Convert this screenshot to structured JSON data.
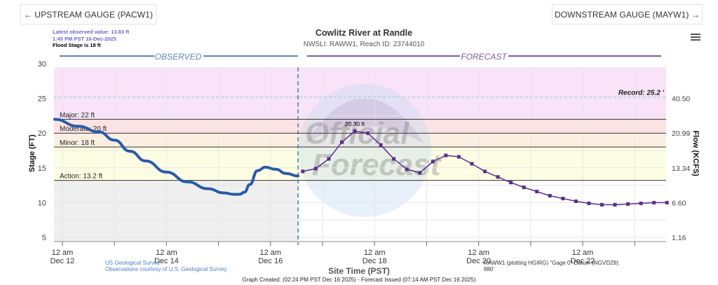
{
  "nav": {
    "upstream_label": "← UPSTREAM GAUGE (PACW1)",
    "downstream_label": "DOWNSTREAM GAUGE (MAYW1) →",
    "menu_icon": "hamburger-menu-icon"
  },
  "info": {
    "latest_value": "Latest observed value: 13.83 ft",
    "latest_time": "1:45 PM PST 16-Dec-2025",
    "flood_stage": "Flood Stage is 18 ft"
  },
  "header": {
    "title": "Cowlitz River at Randle",
    "subtitle": "NWSLI: RAWW1, Reach ID: 23744010"
  },
  "footer": {
    "usgs_line1": "US Geological Survey",
    "usgs_line2": "Observations courtesy of U.S. Geological Survey",
    "datum_line1": "RAWW1 (plotting HGIRG) \"Gage 0\" Datum (NGVD29):",
    "datum_line2": "880'",
    "xaxis_title": "Site Time (PST)",
    "created": "Graph Created: (02:24 PM PST Dec 16 2025) - Forecast Issued (07:14 AM PST Dec 16 2025)"
  },
  "chart_data": {
    "type": "line",
    "title": "Cowlitz River at Randle",
    "subtitle": "NWSLI: RAWW1, Reach ID: 23744010",
    "xlabel": "Site Time (PST)",
    "ylabel": "Stage (FT)",
    "ylabel_right": "Flow (KCFS)",
    "ylim": [
      4.5,
      29.5
    ],
    "y_ticks": [
      5,
      10,
      15,
      20,
      25,
      30
    ],
    "x_ticks": [
      {
        "line1": "12 am",
        "line2": "Dec 12"
      },
      {
        "line1": "12 am",
        "line2": "Dec 14"
      },
      {
        "line1": "12 am",
        "line2": "Dec 16"
      },
      {
        "line1": "12 am",
        "line2": "Dec 18"
      },
      {
        "line1": "12 am",
        "line2": "Dec 20"
      },
      {
        "line1": "12 am",
        "line2": "Dec 22"
      }
    ],
    "right_ticks": [
      {
        "stage": 25,
        "label": "40.50"
      },
      {
        "stage": 20,
        "label": "20.99"
      },
      {
        "stage": 15,
        "label": "13.34"
      },
      {
        "stage": 10,
        "label": "6.60"
      },
      {
        "stage": 5,
        "label": "1.16"
      }
    ],
    "section_labels": {
      "observed": "OBSERVED",
      "forecast": "FORECAST"
    },
    "thresholds": [
      {
        "name": "Major",
        "label": "Major: 22 ft",
        "value": 22,
        "band_color": "#f8e3f8"
      },
      {
        "name": "Moderate",
        "label": "Moderate: 20 ft",
        "value": 20,
        "band_color": "#fbe3e3"
      },
      {
        "name": "Minor",
        "label": "Minor: 18 ft",
        "value": 18,
        "band_color": "#fcefe2"
      },
      {
        "name": "Action",
        "label": "Action: 13.2 ft",
        "value": 13.2,
        "band_color": "#fdfde3"
      }
    ],
    "record": {
      "label": "Record: 25.2 '",
      "value": 25.2
    },
    "peak_label": "20.30 ft",
    "now_day": 4.53,
    "series": [
      {
        "name": "Observed",
        "color": "#2a5aa8",
        "x_days_from_dec12": [
          -0.15,
          0.3,
          0.7,
          1.0,
          1.3,
          1.6,
          2.0,
          2.4,
          2.8,
          3.1,
          3.3,
          3.4,
          3.5,
          3.6,
          3.75,
          3.9,
          4.1,
          4.3,
          4.53
        ],
        "stage_ft": [
          22.0,
          21.0,
          20.2,
          19.0,
          17.4,
          16.0,
          14.4,
          13.0,
          12.0,
          11.4,
          11.2,
          11.2,
          11.5,
          12.6,
          14.6,
          15.1,
          14.8,
          14.2,
          13.83
        ]
      },
      {
        "name": "Forecast",
        "color": "#5b2e8c",
        "x_days_from_dec12": [
          4.62,
          4.87,
          5.12,
          5.37,
          5.62,
          5.87,
          6.12,
          6.37,
          6.62,
          6.87,
          7.12,
          7.37,
          7.62,
          7.87,
          8.12,
          8.37,
          8.62,
          8.87,
          9.12,
          9.37,
          9.62,
          9.87,
          10.12,
          10.37,
          10.62,
          10.87,
          11.12,
          11.37,
          11.62
        ],
        "stage_ft": [
          14.5,
          14.9,
          16.3,
          18.7,
          20.3,
          20.0,
          18.3,
          16.3,
          14.8,
          14.3,
          15.9,
          16.8,
          16.6,
          15.6,
          14.5,
          13.7,
          12.9,
          12.2,
          11.6,
          11.0,
          10.6,
          10.2,
          9.9,
          9.7,
          9.7,
          9.8,
          9.9,
          10.0,
          10.0
        ]
      }
    ],
    "grid": true
  }
}
